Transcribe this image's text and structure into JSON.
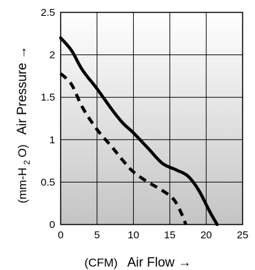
{
  "chart_data": {
    "type": "line",
    "xlabel": "Air Flow →",
    "xunit": "(CFM)",
    "ylabel": "Air Pressure →",
    "yunit_pre": "(mm-H",
    "yunit_sub": "2",
    "yunit_post": "O)",
    "xlim": [
      0,
      25
    ],
    "ylim": [
      0,
      2.5
    ],
    "xticks": [
      0,
      5,
      10,
      15,
      20,
      25
    ],
    "yticks": [
      0,
      0.5,
      1,
      1.5,
      2,
      2.5
    ],
    "xtick_labels": [
      "0",
      "5",
      "10",
      "15",
      "20",
      "25"
    ],
    "ytick_labels": [
      "0",
      "0.5",
      "1",
      "1.5",
      "2",
      "2.5"
    ],
    "grid": true,
    "background": {
      "top": "#ffffff",
      "bottom": "#c4c4c4"
    },
    "line_color": "#000000",
    "series": [
      {
        "style": "solid",
        "points": [
          [
            0,
            2.2
          ],
          [
            1.5,
            2.05
          ],
          [
            3,
            1.82
          ],
          [
            5,
            1.6
          ],
          [
            7,
            1.36
          ],
          [
            8.5,
            1.2
          ],
          [
            10,
            1.08
          ],
          [
            12,
            0.9
          ],
          [
            14,
            0.72
          ],
          [
            16,
            0.64
          ],
          [
            17.5,
            0.57
          ],
          [
            19,
            0.4
          ],
          [
            20.5,
            0.15
          ],
          [
            21.5,
            0
          ]
        ]
      },
      {
        "style": "dashed",
        "points": [
          [
            0,
            1.78
          ],
          [
            1.5,
            1.65
          ],
          [
            3,
            1.38
          ],
          [
            5,
            1.12
          ],
          [
            7,
            0.92
          ],
          [
            8.5,
            0.76
          ],
          [
            10,
            0.62
          ],
          [
            12,
            0.5
          ],
          [
            14,
            0.4
          ],
          [
            15.5,
            0.3
          ],
          [
            16.5,
            0.15
          ],
          [
            17.2,
            0
          ]
        ]
      }
    ]
  }
}
